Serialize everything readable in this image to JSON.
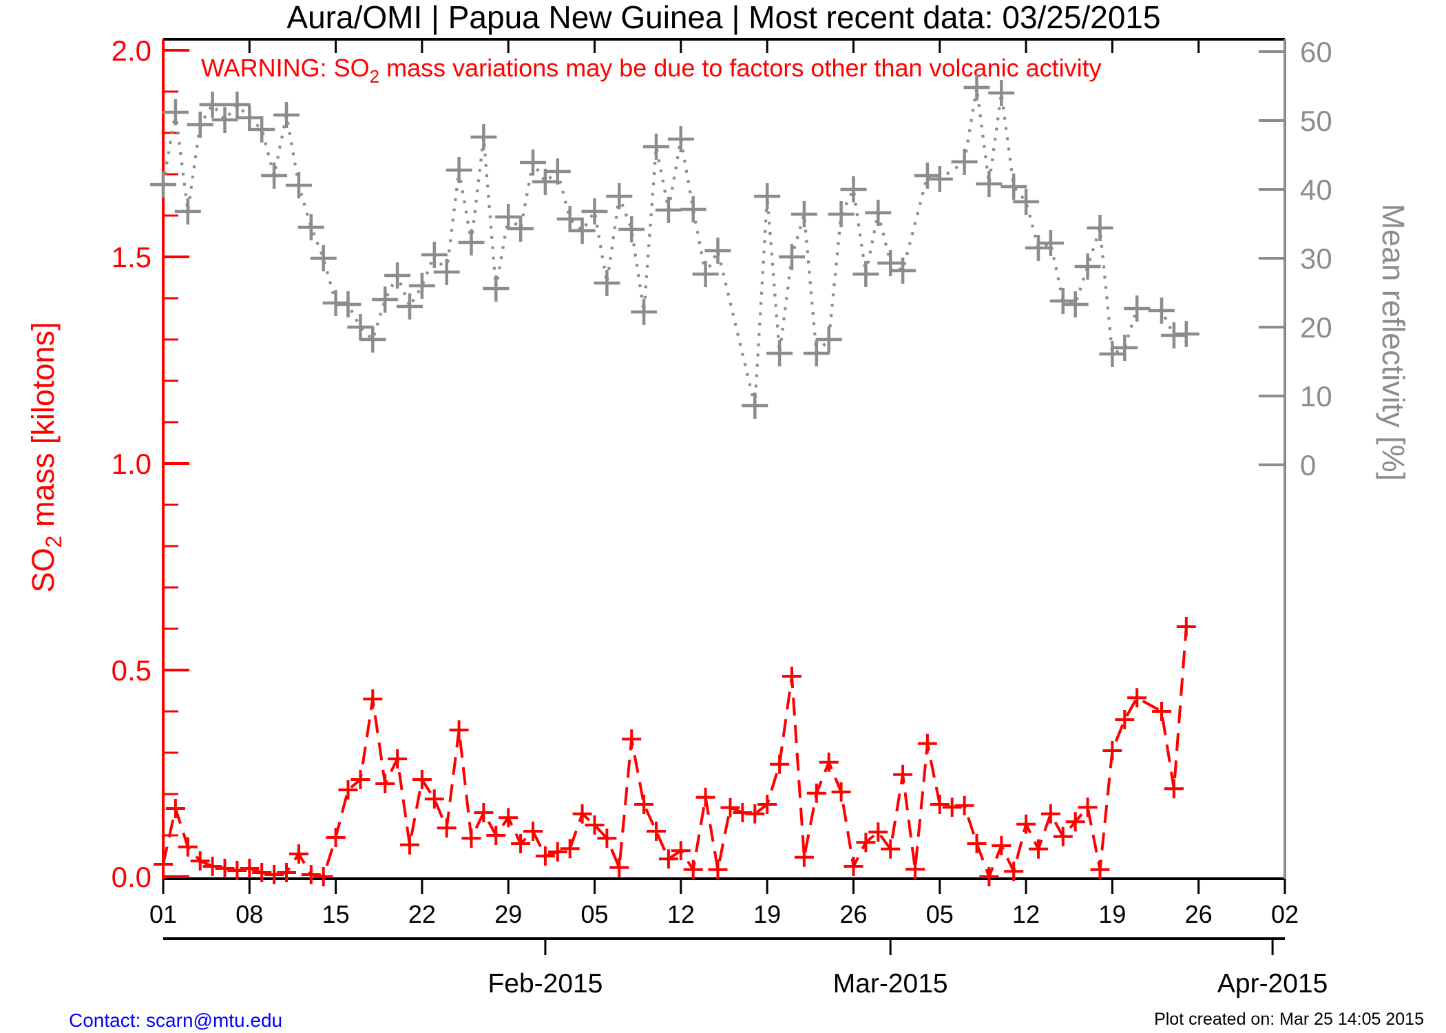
{
  "title": "Aura/OMI | Papua New Guinea | Most recent data: 03/25/2015",
  "warning": {
    "prefix": "WARNING: SO",
    "sub": "2",
    "suffix": " mass variations may be due to factors other than volcanic activity"
  },
  "footer": {
    "contact": "Contact: scarn@mtu.edu",
    "created": "Plot created on: Mar 25 14:05 2015"
  },
  "chart_data": {
    "type": "line",
    "title": "Aura/OMI | Papua New Guinea | Most recent data: 03/25/2015",
    "x_axis": {
      "total_days": 91,
      "tick_step_days": 7,
      "tick_labels": [
        "01",
        "08",
        "15",
        "22",
        "29",
        "05",
        "12",
        "19",
        "26",
        "05",
        "12",
        "19",
        "26",
        "02"
      ],
      "month_ticks": [
        {
          "day_index": 31,
          "label": "Feb-2015"
        },
        {
          "day_index": 59,
          "label": "Mar-2015"
        },
        {
          "day_index": 90,
          "label": "Apr-2015"
        }
      ]
    },
    "y_left": {
      "title_prefix": "SO",
      "title_sub": "2",
      "title_suffix": " mass [kilotons]",
      "tick_labels": [
        "0.0",
        "0.5",
        "1.0",
        "1.5",
        "2.0"
      ],
      "tick_values": [
        0.0,
        0.5,
        1.0,
        1.5,
        2.0
      ],
      "minor_tick_step": 0.1,
      "range": [
        0.0,
        2.0
      ],
      "color": "#ff0000"
    },
    "y_right": {
      "title": "Mean reflectivity [%]",
      "tick_labels": [
        "0",
        "10",
        "20",
        "30",
        "40",
        "50",
        "60"
      ],
      "tick_values": [
        0,
        10,
        20,
        30,
        40,
        50,
        60
      ],
      "color": "#8c8c8c"
    },
    "series": [
      {
        "name": "Mean reflectivity [%]",
        "axis": "right",
        "color": "#8c8c8c",
        "line_style": "dotted",
        "marker": "plus",
        "values_by_day": [
          40.7,
          51.2,
          36.8,
          49.4,
          52.3,
          50.1,
          52.3,
          50.4,
          48.7,
          42.0,
          50.8,
          40.6,
          34.5,
          30.0,
          23.5,
          23.3,
          20.0,
          18.2,
          24.0,
          27.5,
          23.0,
          26.0,
          30.5,
          28.0,
          42.8,
          32.3,
          47.6,
          25.6,
          36.0,
          34.3,
          43.9,
          41.1,
          42.6,
          35.7,
          34.0,
          36.8,
          26.4,
          39.0,
          34.2,
          22.2,
          46.2,
          37.0,
          47.3,
          37.1,
          27.7,
          31.1,
          null,
          null,
          8.6,
          39.0,
          16.2,
          30.2,
          36.4,
          16.2,
          18.2,
          36.4,
          40.0,
          27.7,
          36.6,
          29.3,
          28.2,
          null,
          42.0,
          41.5,
          null,
          44.0,
          54.8,
          40.8,
          54.0,
          40.4,
          38.2,
          31.5,
          32.2,
          23.8,
          23.3,
          28.8,
          34.4,
          16.1,
          17.0,
          22.7,
          null,
          22.4,
          18.8,
          19.0
        ]
      },
      {
        "name": "SO2 mass [kilotons]",
        "axis": "left",
        "color": "#ff0000",
        "line_style": "dashed",
        "marker": "plus",
        "values_by_day": [
          0.03,
          0.165,
          0.072,
          0.038,
          0.025,
          0.02,
          0.015,
          0.02,
          0.01,
          0.005,
          0.01,
          0.055,
          0.005,
          0.0,
          0.095,
          0.21,
          0.235,
          0.43,
          0.225,
          0.285,
          0.077,
          0.235,
          0.188,
          0.118,
          0.355,
          0.093,
          0.155,
          0.1,
          0.143,
          0.08,
          0.11,
          0.05,
          0.06,
          0.068,
          0.152,
          0.125,
          0.093,
          0.022,
          0.333,
          0.175,
          0.11,
          0.043,
          0.063,
          0.017,
          0.192,
          0.017,
          0.167,
          0.155,
          0.152,
          0.175,
          0.272,
          0.485,
          0.047,
          0.202,
          0.277,
          0.205,
          0.025,
          0.083,
          0.108,
          0.067,
          0.247,
          0.018,
          0.322,
          0.175,
          0.168,
          0.172,
          0.08,
          0.0,
          0.075,
          0.013,
          0.127,
          0.067,
          0.152,
          0.097,
          0.133,
          0.168,
          0.017,
          0.305,
          0.38,
          0.433,
          null,
          0.4,
          0.213,
          0.605
        ]
      }
    ]
  }
}
